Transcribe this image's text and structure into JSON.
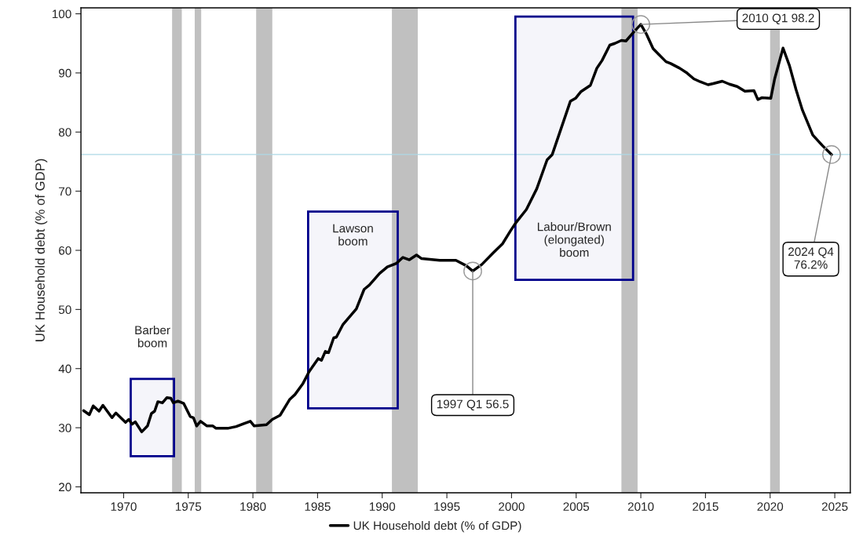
{
  "chart_data": {
    "type": "line",
    "ylabel": "UK Household debt (% of GDP)",
    "x": [
      1966.9,
      1967.35,
      1967.65,
      1968.1,
      1968.4,
      1969.1,
      1969.4,
      1970.15,
      1970.4,
      1970.65,
      1970.9,
      1971.4,
      1971.85,
      1972.15,
      1972.4,
      1972.65,
      1973.0,
      1973.35,
      1973.65,
      1973.85,
      1974.2,
      1974.65,
      1975.15,
      1975.4,
      1975.65,
      1975.95,
      1976.45,
      1976.9,
      1977.15,
      1978.05,
      1978.7,
      1979.3,
      1979.8,
      1980.1,
      1981.05,
      1981.5,
      1982.1,
      1982.85,
      1983.25,
      1983.85,
      1984.35,
      1985.05,
      1985.3,
      1985.6,
      1985.85,
      1986.25,
      1986.45,
      1986.95,
      1988.0,
      1988.6,
      1989.0,
      1989.8,
      1990.4,
      1991.1,
      1991.6,
      1992.1,
      1992.65,
      1993.05,
      1994.45,
      1995.7,
      1996.5,
      1997.0,
      1997.7,
      1998.6,
      1999.3,
      1999.95,
      2000.35,
      2001.15,
      2001.95,
      2002.75,
      2003.15,
      2004.55,
      2004.95,
      2005.35,
      2006.1,
      2006.6,
      2007.0,
      2007.6,
      2008.0,
      2008.5,
      2008.85,
      2009.45,
      2010.0,
      2010.45,
      2010.95,
      2011.35,
      2011.95,
      2012.3,
      2013.0,
      2013.5,
      2014.1,
      2014.6,
      2015.2,
      2015.6,
      2016.3,
      2016.85,
      2017.45,
      2018.05,
      2018.75,
      2019.05,
      2019.35,
      2020.05,
      2020.35,
      2021.0,
      2021.5,
      2022.0,
      2022.5,
      2023.3,
      2024.05,
      2024.75
    ],
    "series": [
      {
        "name": "UK Household debt (% of GDP)",
        "color": "#000000",
        "values": [
          32.9,
          32.2,
          33.7,
          32.8,
          33.8,
          31.7,
          32.5,
          30.9,
          31.4,
          30.6,
          31.0,
          29.3,
          30.3,
          32.4,
          32.8,
          34.4,
          34.2,
          35.1,
          35.0,
          34.2,
          34.5,
          34.1,
          31.9,
          31.7,
          30.3,
          31.1,
          30.3,
          30.3,
          29.9,
          29.9,
          30.2,
          30.7,
          31.1,
          30.3,
          30.5,
          31.4,
          32.1,
          34.8,
          35.6,
          37.4,
          39.5,
          41.7,
          41.4,
          42.9,
          42.7,
          45.2,
          45.3,
          47.4,
          50.1,
          53.4,
          54.1,
          56.1,
          57.2,
          57.8,
          58.8,
          58.4,
          59.2,
          58.6,
          58.3,
          58.3,
          57.4,
          56.5,
          57.6,
          59.6,
          61.1,
          63.4,
          64.7,
          66.9,
          70.4,
          75.3,
          76.2,
          85.2,
          85.7,
          86.8,
          87.9,
          90.8,
          92.1,
          94.7,
          95.0,
          95.5,
          95.4,
          96.9,
          98.2,
          96.5,
          94.1,
          93.2,
          91.9,
          91.6,
          90.8,
          90.1,
          89.0,
          88.5,
          88.0,
          88.2,
          88.6,
          88.1,
          87.7,
          86.9,
          87.0,
          85.5,
          85.8,
          85.7,
          89.0,
          94.2,
          91.2,
          87.2,
          83.7,
          79.5,
          77.7,
          76.2
        ]
      }
    ],
    "xlim": [
      1966.7,
      2026.2
    ],
    "ylim": [
      19,
      101
    ],
    "xticks": [
      1970,
      1975,
      1980,
      1985,
      1990,
      1995,
      2000,
      2005,
      2010,
      2015,
      2020,
      2025
    ],
    "yticks": [
      20,
      30,
      40,
      50,
      60,
      70,
      80,
      90,
      100
    ],
    "bands": [
      {
        "axis": "x",
        "from": 1973.75,
        "to": 1974.5,
        "color": "#c0c0c0"
      },
      {
        "axis": "x",
        "from": 1975.5,
        "to": 1976.0,
        "color": "#c0c0c0"
      },
      {
        "axis": "x",
        "from": 1980.25,
        "to": 1981.5,
        "color": "#c0c0c0"
      },
      {
        "axis": "x",
        "from": 1990.75,
        "to": 1992.75,
        "color": "#c0c0c0"
      },
      {
        "axis": "x",
        "from": 2008.5,
        "to": 2009.75,
        "color": "#c0c0c0"
      },
      {
        "axis": "x",
        "from": 2020.0,
        "to": 2020.75,
        "color": "#c0c0c0"
      },
      {
        "axis": "x",
        "from": 1970.55,
        "to": 1973.9,
        "label": "Barber\nboom",
        "color": "#00008b"
      },
      {
        "axis": "x",
        "from": 1984.27,
        "to": 1991.2,
        "label": "Lawson\nboom",
        "color": "#00008b"
      },
      {
        "axis": "x",
        "from": 2000.3,
        "to": 2009.4,
        "label": "Labour/Brown\n(elongated)\nboom",
        "color": "#00008b"
      }
    ],
    "ref_lines": [
      {
        "axis": "y",
        "value": 76.2,
        "color": "#add8e6"
      }
    ],
    "annotations": [
      {
        "text": "1997 Q1 56.5",
        "x": 1997.0,
        "y": 56.5
      },
      {
        "text": "2010 Q1 98.2",
        "x": 2010.0,
        "y": 98.2
      },
      {
        "text": "2024 Q4\n76.2%",
        "x": 2024.75,
        "y": 76.2
      }
    ],
    "legend": "bottom",
    "grid": false
  }
}
